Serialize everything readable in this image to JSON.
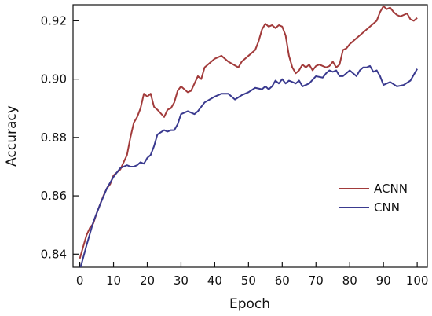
{
  "chart_data": {
    "type": "line",
    "title": "",
    "xlabel": "Epoch",
    "ylabel": "Accuracy",
    "xlim": [
      -2,
      103
    ],
    "ylim": [
      0.8355,
      0.9255
    ],
    "xticks": [
      0,
      10,
      20,
      30,
      40,
      50,
      60,
      70,
      80,
      90,
      100
    ],
    "yticks": [
      0.84,
      0.86,
      0.88,
      0.9,
      0.92
    ],
    "ytick_labels": [
      "0.84",
      "0.86",
      "0.88",
      "0.90",
      "0.92"
    ],
    "grid": false,
    "legend_position": "lower-right",
    "series": [
      {
        "name": "ACNN",
        "color": "#a23b3b",
        "x": [
          0,
          2,
          3,
          4,
          5,
          6,
          7,
          8,
          9,
          10,
          12,
          14,
          15,
          16,
          17,
          18,
          19,
          20,
          21,
          22,
          23,
          25,
          26,
          27,
          28,
          29,
          30,
          31,
          32,
          33,
          35,
          36,
          37,
          40,
          42,
          44,
          47,
          48,
          50,
          52,
          53,
          54,
          55,
          56,
          57,
          58,
          59,
          60,
          61,
          62,
          63,
          64,
          65,
          66,
          67,
          68,
          69,
          70,
          71,
          72,
          73,
          74,
          75,
          76,
          77,
          78,
          79,
          80,
          82,
          85,
          88,
          89,
          90,
          91,
          92,
          93,
          94,
          95,
          96,
          97,
          98,
          99,
          100
        ],
        "y": [
          0.8385,
          0.8465,
          0.849,
          0.8505,
          0.854,
          0.857,
          0.86,
          0.8625,
          0.864,
          0.867,
          0.869,
          0.874,
          0.88,
          0.885,
          0.887,
          0.89,
          0.895,
          0.894,
          0.895,
          0.8905,
          0.8895,
          0.887,
          0.8895,
          0.89,
          0.892,
          0.896,
          0.8975,
          0.8965,
          0.8955,
          0.896,
          0.901,
          0.9,
          0.904,
          0.907,
          0.908,
          0.906,
          0.904,
          0.906,
          0.908,
          0.91,
          0.913,
          0.917,
          0.919,
          0.918,
          0.9185,
          0.9175,
          0.9185,
          0.918,
          0.915,
          0.908,
          0.904,
          0.902,
          0.903,
          0.905,
          0.904,
          0.905,
          0.903,
          0.9045,
          0.905,
          0.9045,
          0.904,
          0.9045,
          0.906,
          0.904,
          0.905,
          0.91,
          0.9105,
          0.912,
          0.914,
          0.917,
          0.92,
          0.923,
          0.925,
          0.924,
          0.9245,
          0.923,
          0.922,
          0.9215,
          0.922,
          0.9225,
          0.9205,
          0.92,
          0.921
        ]
      },
      {
        "name": "CNN",
        "color": "#3a3a8f",
        "x": [
          0,
          2,
          4,
          6,
          8,
          10,
          12,
          14,
          15,
          16,
          17,
          18,
          19,
          20,
          21,
          22,
          23,
          25,
          26,
          27,
          28,
          29,
          30,
          32,
          34,
          35,
          37,
          40,
          42,
          44,
          45,
          46,
          48,
          50,
          52,
          54,
          55,
          56,
          57,
          58,
          59,
          60,
          61,
          62,
          63,
          64,
          65,
          66,
          68,
          70,
          72,
          73,
          74,
          75,
          76,
          77,
          78,
          79,
          80,
          82,
          83,
          84,
          85,
          86,
          87,
          88,
          89,
          90,
          92,
          94,
          96,
          98,
          100
        ],
        "y": [
          0.8345,
          0.843,
          0.851,
          0.857,
          0.8625,
          0.8665,
          0.8695,
          0.8705,
          0.87,
          0.87,
          0.8705,
          0.8715,
          0.871,
          0.873,
          0.874,
          0.877,
          0.881,
          0.8825,
          0.882,
          0.8825,
          0.8825,
          0.8845,
          0.888,
          0.889,
          0.888,
          0.889,
          0.892,
          0.894,
          0.895,
          0.895,
          0.894,
          0.893,
          0.8945,
          0.8955,
          0.897,
          0.8965,
          0.8975,
          0.8965,
          0.8975,
          0.8995,
          0.8985,
          0.9,
          0.8985,
          0.8995,
          0.899,
          0.8985,
          0.8995,
          0.8975,
          0.8985,
          0.901,
          0.9005,
          0.902,
          0.903,
          0.9025,
          0.903,
          0.901,
          0.901,
          0.902,
          0.903,
          0.901,
          0.903,
          0.904,
          0.904,
          0.9045,
          0.9025,
          0.903,
          0.901,
          0.898,
          0.899,
          0.8975,
          0.898,
          0.8995,
          0.9035
        ]
      }
    ]
  }
}
